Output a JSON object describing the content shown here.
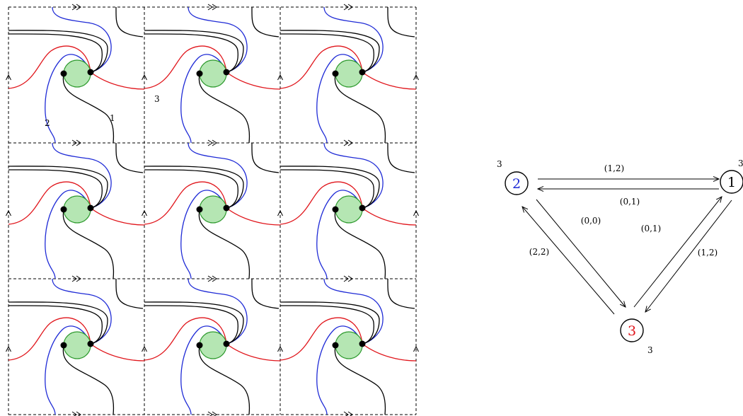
{
  "tiling": {
    "rows": 3,
    "cols": 3,
    "labels": {
      "black": "1",
      "blue": "2",
      "red": "3"
    },
    "colors": {
      "black": "#000000",
      "blue": "#1f2bd6",
      "red": "#e0141a",
      "disk_fill": "#b5e6b3",
      "disk_stroke": "#2e9a2e",
      "node": "#000000"
    }
  },
  "quiver": {
    "nodes": [
      {
        "id": "2",
        "label": "2",
        "weight": "3",
        "color": "#1f2bd6"
      },
      {
        "id": "1",
        "label": "1",
        "weight": "3",
        "color": "#000000"
      },
      {
        "id": "3",
        "label": "3",
        "weight": "3",
        "color": "#e0141a"
      }
    ],
    "edges": [
      {
        "from": "2",
        "to": "1",
        "label": "(1,2)"
      },
      {
        "from": "1",
        "to": "2",
        "label": "(0,1)"
      },
      {
        "from": "2",
        "to": "3",
        "label": "(0,0)"
      },
      {
        "from": "3",
        "to": "2",
        "label": "(2,2)"
      },
      {
        "from": "3",
        "to": "1",
        "label": "(0,1)"
      },
      {
        "from": "1",
        "to": "3",
        "label": "(1,2)"
      }
    ]
  }
}
